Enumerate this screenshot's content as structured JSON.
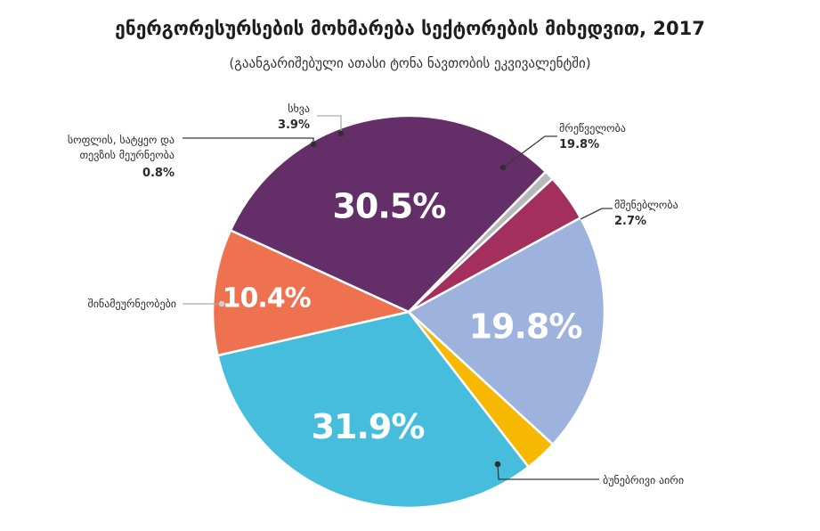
{
  "chart_data": {
    "type": "pie",
    "title": "ენერგორესურსების მოხმარება სექტორების მიხედვით, 2017",
    "subtitle": "(გაანგარიშებული ათასი ტონა ნავთობის ეკვივალენტში)",
    "slices": [
      {
        "label": "მრეწველობა",
        "value": 19.8,
        "value_label": "19.8%",
        "color": "#9db2dc",
        "inner_label": "19.8%",
        "inner_color": "#ffffff"
      },
      {
        "label": "მშენებლობა",
        "value": 2.7,
        "value_label": "2.7%",
        "color": "#f6b800",
        "inner_label": "",
        "inner_color": "#ffffff"
      },
      {
        "label": "ბუნებრივი აირი",
        "value": 31.9,
        "value_label": "",
        "color": "#46bddc",
        "inner_label": "31.9%",
        "inner_color": "#ffffff"
      },
      {
        "label": "",
        "value": 10.4,
        "value_label": "",
        "color": "#ee7150",
        "inner_label": "10.4%",
        "inner_color": "#ffffff"
      },
      {
        "label": "შინამეურნეობები",
        "value": 30.5,
        "value_label": "",
        "color": "#642f68",
        "inner_label": "30.5%",
        "inner_color": "#ffffff"
      },
      {
        "label": "სოფლის, სატყეო და თევზის მეურნეობა",
        "value": 0.8,
        "value_label": "0.8%",
        "color": "#b8b8b8",
        "inner_label": "",
        "inner_color": "#ffffff"
      },
      {
        "label": "სხვა",
        "value": 3.9,
        "value_label": "3.9%",
        "color": "#a3305c",
        "inner_label": "",
        "inner_color": "#ffffff"
      }
    ]
  }
}
